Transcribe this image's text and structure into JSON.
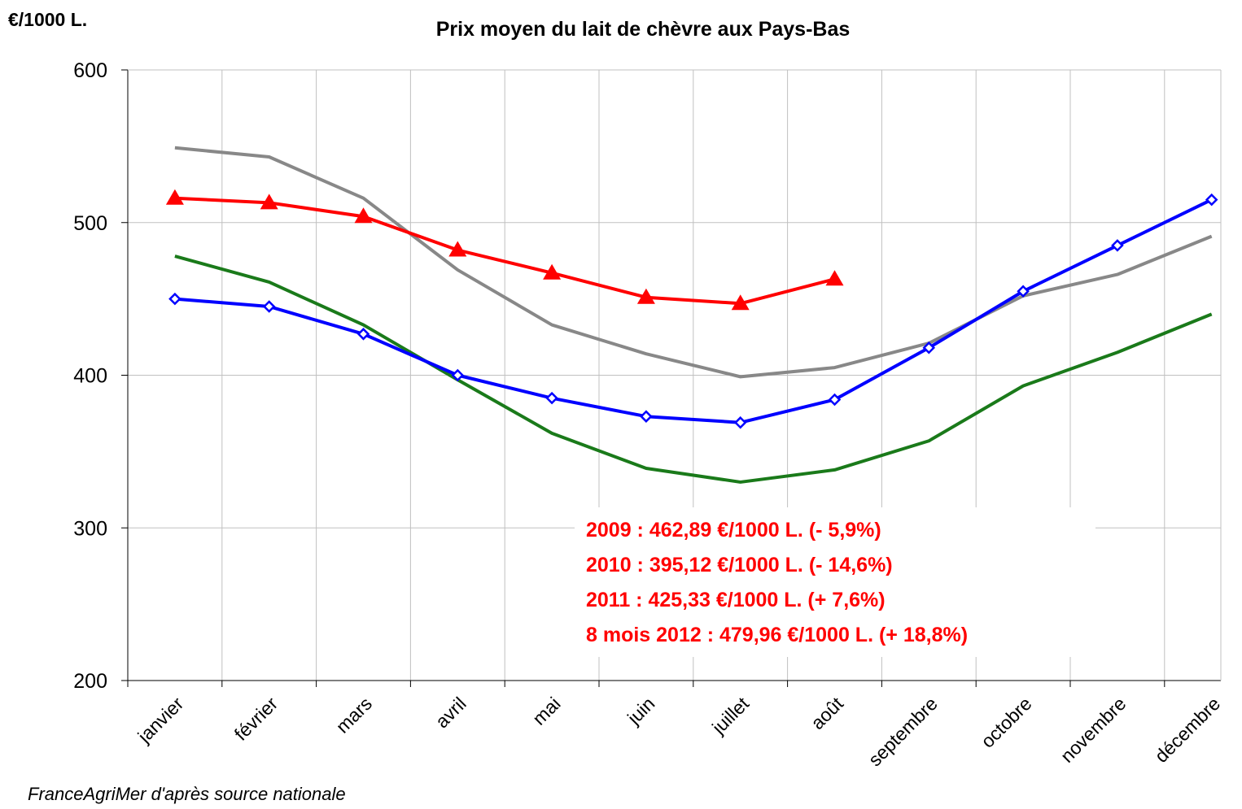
{
  "chart_data": {
    "type": "line",
    "title": "Prix moyen du lait de chèvre aux Pays-Bas",
    "y_label": "€/1000 L.",
    "source": "FranceAgriMer d'après source nationale",
    "annotations": [
      "2009 : 462,89 €/1000 L. (- 5,9%)",
      "2010 : 395,12 €/1000 L. (- 14,6%)",
      "2011 : 425,33 €/1000 L. (+ 7,6%)",
      "8 mois 2012 : 479,96 €/1000 L. (+ 18,8%)"
    ],
    "annotation_color": "#ff0000",
    "categories": [
      "janvier",
      "février",
      "mars",
      "avril",
      "mai",
      "juin",
      "juillet",
      "août",
      "septembre",
      "octobre",
      "novembre",
      "décembre"
    ],
    "ylim": [
      200,
      600
    ],
    "yticks": [
      200,
      300,
      400,
      500,
      600
    ],
    "grid": true,
    "series": [
      {
        "color": "#888888",
        "marker": "none",
        "values": [
          549,
          543,
          516,
          469,
          433,
          414,
          399,
          405,
          421,
          452,
          466,
          491
        ]
      },
      {
        "color": "#1a7a1a",
        "marker": "none",
        "values": [
          478,
          461,
          433,
          397,
          362,
          339,
          330,
          338,
          357,
          393,
          415,
          440
        ]
      },
      {
        "color": "#0000ff",
        "marker": "diamond",
        "values": [
          450,
          445,
          427,
          400,
          385,
          373,
          369,
          384,
          418,
          455,
          485,
          515
        ]
      },
      {
        "color": "#ff0000",
        "marker": "triangle",
        "values": [
          516,
          513,
          504,
          482,
          467,
          451,
          447,
          463,
          null,
          null,
          null,
          null
        ]
      }
    ]
  }
}
